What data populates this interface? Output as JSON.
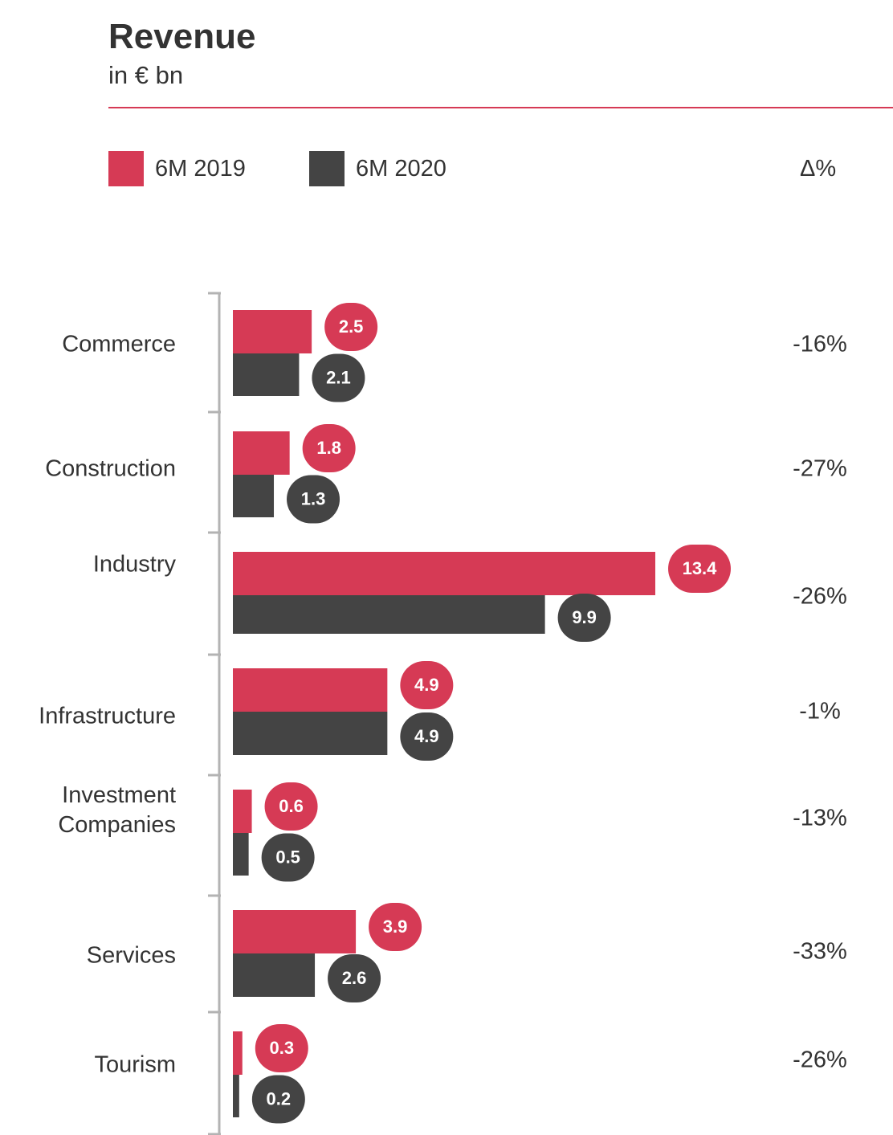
{
  "chart_data": {
    "type": "bar",
    "orientation": "horizontal",
    "title": "Revenue",
    "subtitle": "in € bn",
    "delta_header": "Δ%",
    "categories": [
      "Commerce",
      "Construction",
      "Industry",
      "Infrastructure",
      "Investment Companies",
      "Services",
      "Tourism"
    ],
    "category_lines": [
      [
        "Commerce"
      ],
      [
        "Construction"
      ],
      [
        "Industry"
      ],
      [
        "Infrastructure"
      ],
      [
        "Investment",
        "Companies"
      ],
      [
        "Services"
      ],
      [
        "Tourism"
      ]
    ],
    "series": [
      {
        "name": "6M 2019",
        "color": "#d63a55",
        "values": [
          2.5,
          1.8,
          13.4,
          4.9,
          0.6,
          3.9,
          0.3
        ]
      },
      {
        "name": "6M 2020",
        "color": "#444444",
        "values": [
          2.1,
          1.3,
          9.9,
          4.9,
          0.5,
          2.6,
          0.2
        ]
      }
    ],
    "delta": [
      "-16%",
      "-27%",
      "-26%",
      "-1%",
      "-13%",
      "-33%",
      "-26%"
    ],
    "xlim": [
      0,
      13.4
    ],
    "grid": false,
    "legend": "top-left"
  },
  "colors": {
    "accent": "#d63a55",
    "dark": "#444444",
    "text": "#333333",
    "axis": "#b3b3b3"
  }
}
